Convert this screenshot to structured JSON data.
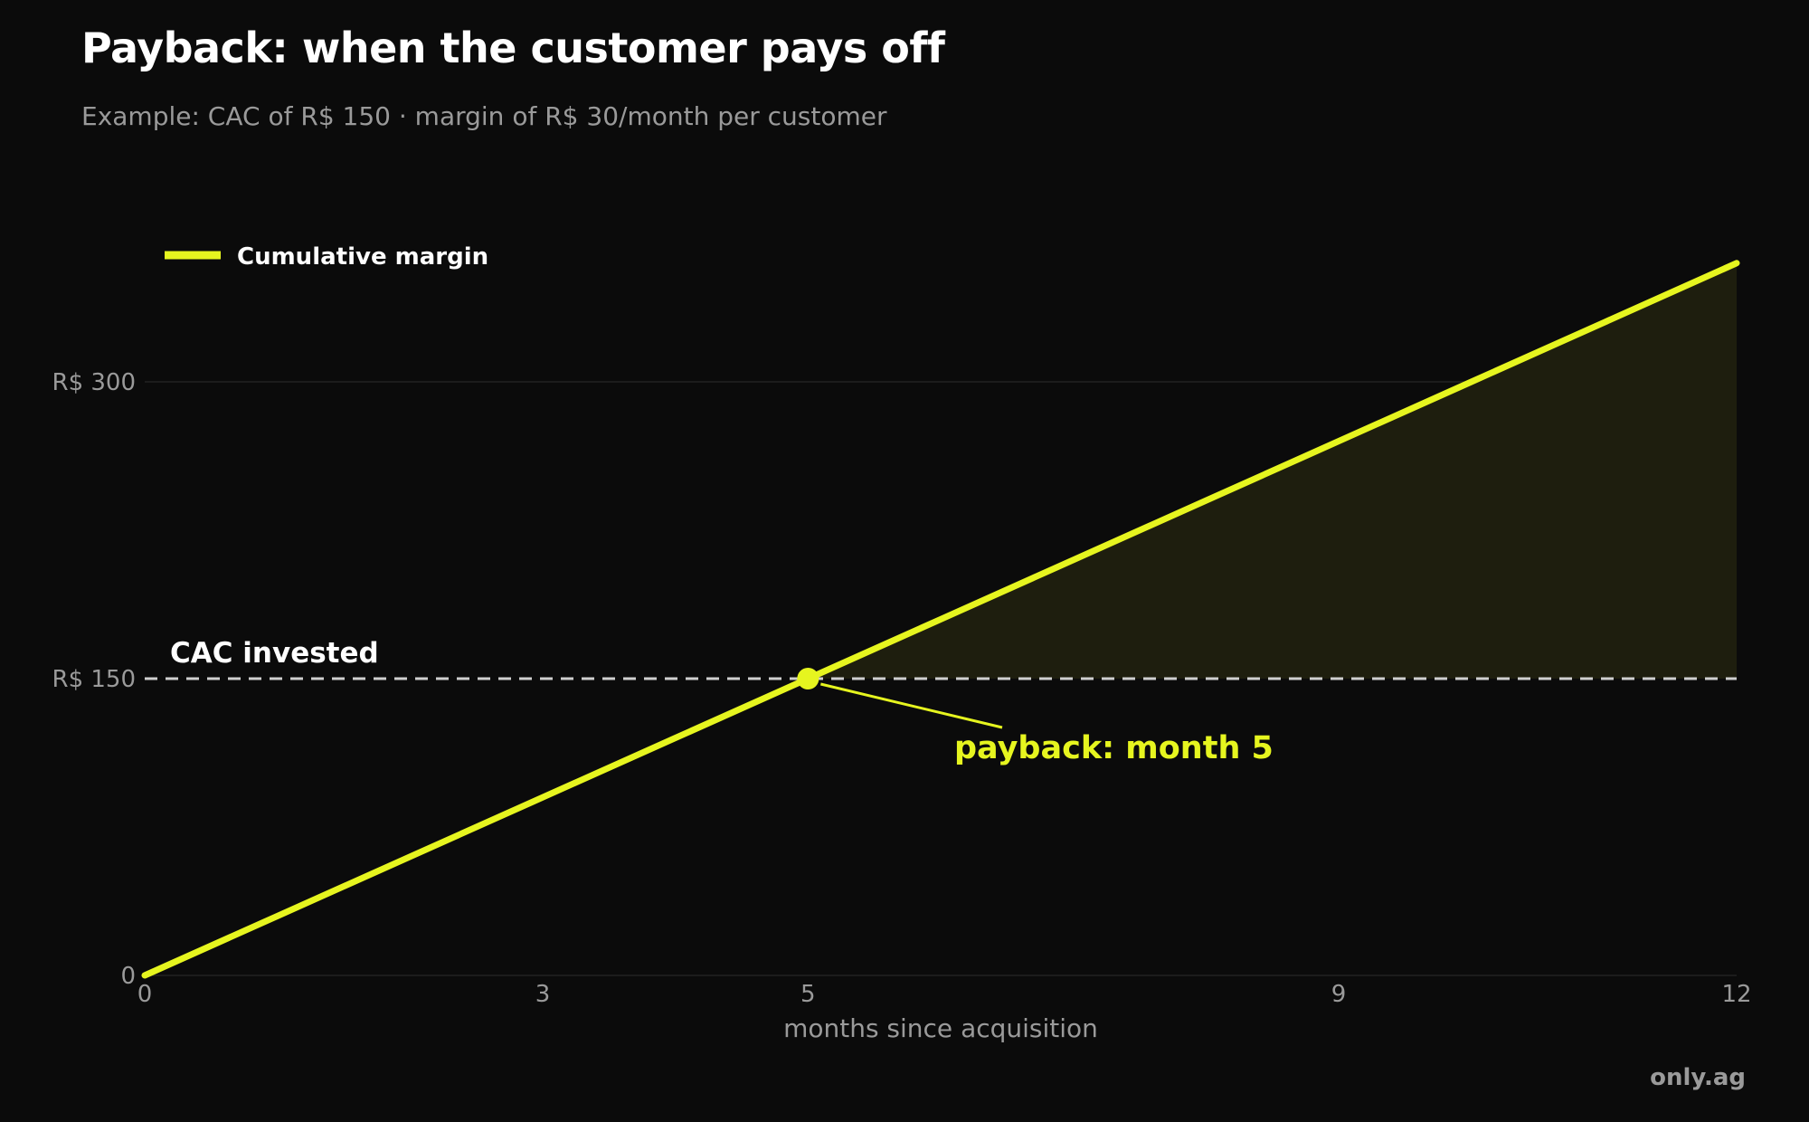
{
  "title": "Payback: when the customer pays off",
  "subtitle": "Example: CAC of R$ 150 · margin of R$ 30/month per customer",
  "brand": "only.ag",
  "colors": {
    "background": "#0b0b0b",
    "line": "#e6f51f",
    "reference": "#cfcfcf",
    "muted_text": "#9a9a9a",
    "gridline": "#232323",
    "area_fill": "#1e1e0e"
  },
  "chart_data": {
    "type": "line",
    "title": "Payback: when the customer pays off",
    "subtitle": "Example: CAC of R$ 150 · margin of R$ 30/month per customer",
    "xlabel": "months since acquisition",
    "ylabel": "",
    "xlim": [
      0,
      12
    ],
    "ylim": [
      0,
      360
    ],
    "x_ticks": [
      0,
      3,
      5,
      9,
      12
    ],
    "y_ticks": [
      {
        "value": 0,
        "label": "0"
      },
      {
        "value": 150,
        "label": "R$ 150"
      },
      {
        "value": 300,
        "label": "R$ 300"
      }
    ],
    "grid": "horizontal",
    "legend": {
      "position": "top-left",
      "entries": [
        "Cumulative margin"
      ]
    },
    "series": [
      {
        "name": "Cumulative margin",
        "x": [
          0,
          1,
          2,
          3,
          4,
          5,
          6,
          7,
          8,
          9,
          10,
          11,
          12
        ],
        "y": [
          0,
          30,
          60,
          90,
          120,
          150,
          180,
          210,
          240,
          270,
          300,
          330,
          360
        ]
      }
    ],
    "reference_line": {
      "value": 150,
      "label": "CAC invested",
      "style": "dashed"
    },
    "shaded_region": {
      "from_x": 5,
      "to_x": 12,
      "between": "line and CAC invested"
    },
    "annotation": {
      "x": 5,
      "y": 150,
      "text": "payback: month 5"
    }
  }
}
